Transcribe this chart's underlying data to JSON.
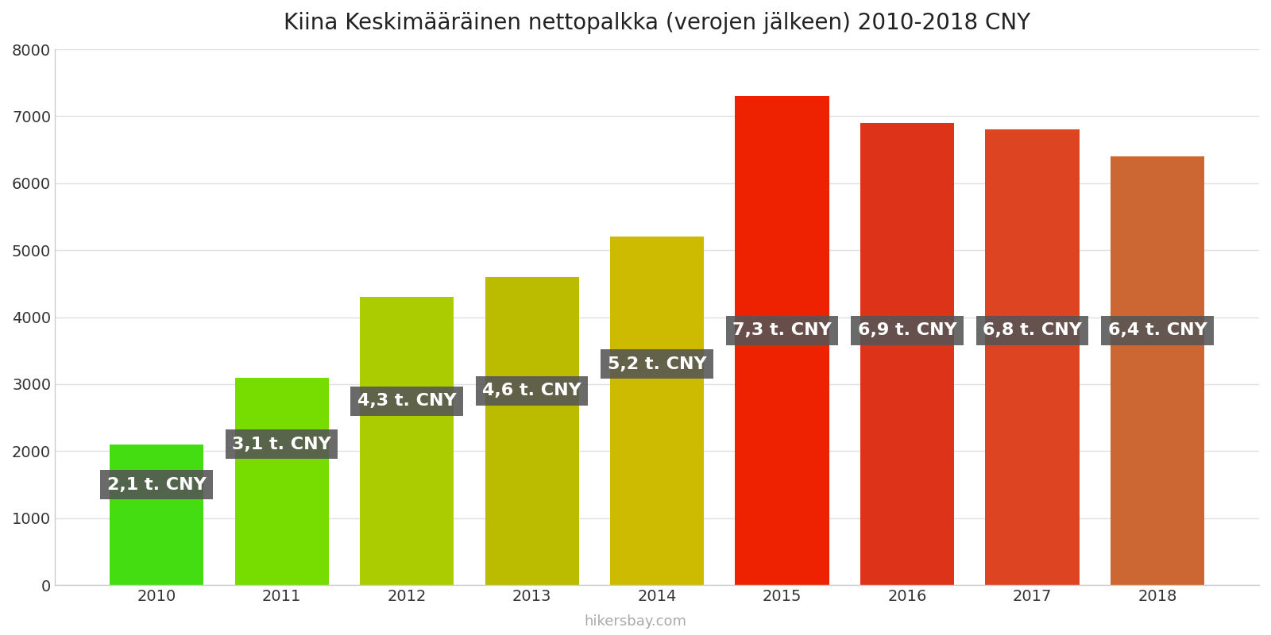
{
  "title": "Kiina Keskimääräinen nettopalkka (verojen jälkeen) 2010-2018 CNY",
  "years": [
    2010,
    2011,
    2012,
    2013,
    2014,
    2015,
    2016,
    2017,
    2018
  ],
  "values": [
    2100,
    3100,
    4300,
    4600,
    5200,
    7300,
    6900,
    6800,
    6400
  ],
  "labels": [
    "2,1 t. CNY",
    "3,1 t. CNY",
    "4,3 t. CNY",
    "4,6 t. CNY",
    "5,2 t. CNY",
    "7,3 t. CNY",
    "6,9 t. CNY",
    "6,8 t. CNY",
    "6,4 t. CNY"
  ],
  "bar_colors": [
    "#44dd11",
    "#77dd00",
    "#aacc00",
    "#bbbb00",
    "#ccbb00",
    "#ee2200",
    "#dd3318",
    "#dd4422",
    "#cc6633"
  ],
  "ylim": [
    0,
    8000
  ],
  "yticks": [
    0,
    1000,
    2000,
    3000,
    4000,
    5000,
    6000,
    7000,
    8000
  ],
  "label_bg_color": "#555555",
  "label_text_color": "#ffffff",
  "watermark": "hikersbay.com",
  "background_color": "#ffffff",
  "grid_color": "#e0e0e0",
  "title_fontsize": 20,
  "label_fontsize": 16,
  "tick_fontsize": 14,
  "bar_width": 0.75,
  "label_y_positions": [
    1500,
    2100,
    2750,
    2900,
    3300,
    3800,
    3800,
    3800,
    3800
  ]
}
